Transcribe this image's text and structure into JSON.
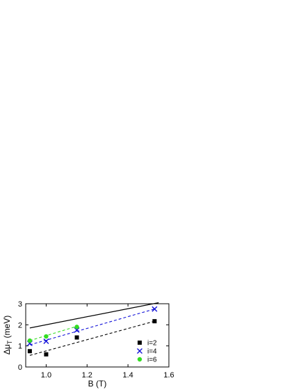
{
  "chart_data": {
    "type": "scatter",
    "xlabel": "B (T)",
    "ylabel": "Δμ",
    "ylabel_subscript": "T",
    "ylabel_unit": " (meV)",
    "xlim": [
      0.9,
      1.6
    ],
    "ylim": [
      0,
      3
    ],
    "xticks": [
      1.0,
      1.2,
      1.4,
      1.6
    ],
    "xtick_labels": [
      "1.0",
      "1.2",
      "1.4",
      "1.6"
    ],
    "yticks": [
      0,
      1,
      2,
      3
    ],
    "ytick_labels": [
      "0",
      "1",
      "2",
      "3"
    ],
    "grid": false,
    "legend_position": "bottom-right",
    "series": [
      {
        "name": "i=2",
        "marker": "square",
        "color": "#000000",
        "x": [
          0.92,
          1.0,
          1.15,
          1.53
        ],
        "y": [
          0.75,
          0.6,
          1.4,
          2.17
        ],
        "fit": {
          "x": [
            0.92,
            1.53
          ],
          "y": [
            0.55,
            2.17
          ],
          "dash": true
        }
      },
      {
        "name": "i=4",
        "marker": "x",
        "color": "#1010d8",
        "x": [
          0.92,
          1.0,
          1.15,
          1.53
        ],
        "y": [
          1.12,
          1.22,
          1.75,
          2.75
        ],
        "fit": {
          "x": [
            0.92,
            1.53
          ],
          "y": [
            1.05,
            2.75
          ],
          "dash": true
        }
      },
      {
        "name": "i=6",
        "marker": "circle",
        "color": "#33dd22",
        "x": [
          0.92,
          1.0,
          1.15
        ],
        "y": [
          1.25,
          1.45,
          1.9
        ],
        "fit": {
          "x": [
            0.92,
            1.15
          ],
          "y": [
            1.25,
            1.93
          ],
          "dash": true
        }
      }
    ],
    "reference_line": {
      "color": "#000000",
      "x": [
        0.92,
        1.55
      ],
      "y": [
        1.85,
        3.05
      ],
      "dash": false
    }
  }
}
